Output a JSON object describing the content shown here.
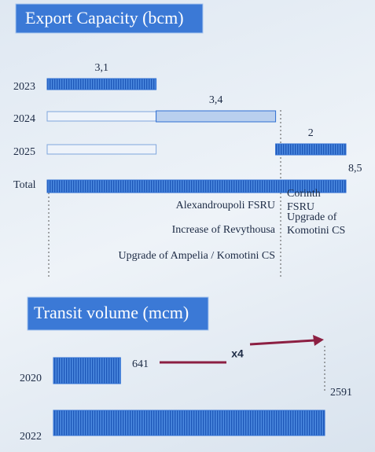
{
  "chart_data": [
    {
      "type": "waterfall",
      "title": "Export Capacity (bcm)",
      "categories": [
        "2023",
        "2024",
        "2025",
        "Total"
      ],
      "values": [
        3.1,
        3.4,
        2,
        8.5
      ],
      "value_labels": [
        "3,1",
        "3,4",
        "2",
        "8,5"
      ],
      "color": "#2f6fd2",
      "annotations": [
        [
          "Alexandroupoli FSRU",
          "Increase of Revythousa",
          "Upgrade of Ampelia / Komotini CS"
        ],
        [
          "Corinth FSRU",
          "Upgrade of Komotini CS"
        ]
      ]
    },
    {
      "type": "bar",
      "title": "Transit volume (mcm)",
      "categories": [
        "2020",
        "2022"
      ],
      "values": [
        641,
        2591
      ],
      "color": "#2f6fd2",
      "annotation": "x4",
      "annotation_color": "#8c1f42"
    }
  ]
}
